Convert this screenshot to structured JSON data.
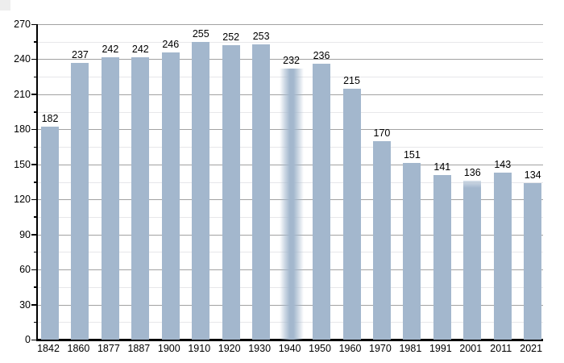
{
  "chart_data": {
    "type": "bar",
    "title": "",
    "xlabel": "",
    "ylabel": "",
    "categories": [
      "1842",
      "1860",
      "1877",
      "1887",
      "1900",
      "1910",
      "1920",
      "1930",
      "1940",
      "1950",
      "1960",
      "1970",
      "1981",
      "1991",
      "2001",
      "2011",
      "2021"
    ],
    "values": [
      182,
      237,
      242,
      242,
      246,
      255,
      252,
      253,
      232,
      236,
      215,
      170,
      151,
      141,
      136,
      143,
      134
    ],
    "bar_styles": [
      "solid",
      "solid",
      "solid",
      "solid",
      "solid",
      "solid",
      "solid",
      "solid",
      "faded",
      "solid",
      "solid",
      "solid",
      "solid",
      "solid",
      "soft-top",
      "solid",
      "solid"
    ],
    "ylim": [
      0,
      270
    ],
    "y_axis_labels": [
      "0",
      "30",
      "60",
      "90",
      "120",
      "150",
      "180",
      "210",
      "240",
      "270"
    ],
    "y_major_step": 30,
    "y_minor_step": 15,
    "grid": "horizontal major+minor",
    "legend": "none",
    "colors": {
      "bar": "#a3b7cd",
      "major_grid": "#a2a2a2",
      "minor_grid": "#e7e7ea",
      "axis": "#000000",
      "text": "#000000",
      "background": "#ffffff",
      "corner_artifact": "#ededed"
    }
  }
}
